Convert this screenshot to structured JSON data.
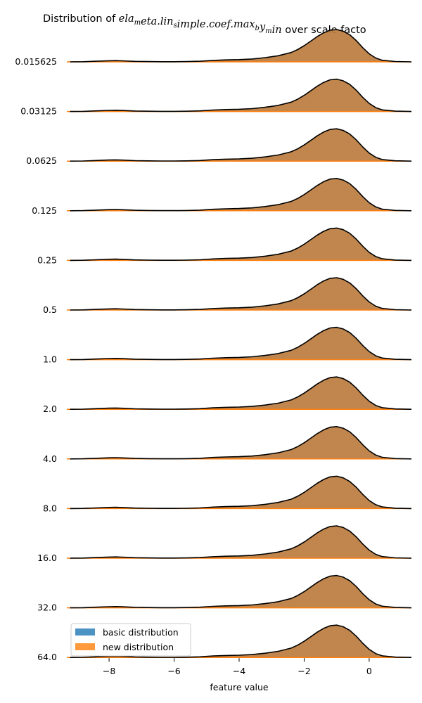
{
  "chart_data": {
    "type": "area",
    "chart_kind": "ridgeline",
    "title": "Distribution of $ela_meta.lin_simple.coef.max_by_min$ over scale factors",
    "title_display": {
      "prefix": "Distribution of ",
      "math": [
        {
          "base": "ela",
          "sub": "m"
        },
        {
          "base": "eta.lin",
          "sub": "s"
        },
        {
          "base": "imple.coef.max",
          "sub": "b"
        },
        {
          "base": "y",
          "sub": "m"
        },
        {
          "base": "in",
          "sub": ""
        }
      ],
      "suffix": " over scale facto"
    },
    "xlabel": "feature value",
    "ylabel": "",
    "xlim": [
      -9.3,
      1.3
    ],
    "x_ticks": [
      {
        "value": -8,
        "label": "−8"
      },
      {
        "value": -6,
        "label": "−6"
      },
      {
        "value": -4,
        "label": "−4"
      },
      {
        "value": -2,
        "label": "−2"
      },
      {
        "value": 0,
        "label": "0"
      }
    ],
    "row_labels": [
      "0.015625",
      "0.03125",
      "0.0625",
      "0.125",
      "0.25",
      "0.5",
      "1.0",
      "2.0",
      "4.0",
      "8.0",
      "16.0",
      "32.0",
      "64.0"
    ],
    "grid": false,
    "legend_position": "lower-left",
    "colors": {
      "basic": "#1f77b4",
      "new": "#ff7f0e",
      "overlap": "#c98b55",
      "outline": "#000000"
    },
    "x": [
      -9.2,
      -8.8,
      -8.4,
      -8.0,
      -7.8,
      -7.6,
      -7.2,
      -6.8,
      -6.4,
      -6.0,
      -5.6,
      -5.2,
      -4.8,
      -4.4,
      -4.0,
      -3.6,
      -3.2,
      -2.8,
      -2.4,
      -2.2,
      -2.0,
      -1.8,
      -1.6,
      -1.4,
      -1.2,
      -1.0,
      -0.8,
      -0.6,
      -0.4,
      -0.2,
      0.0,
      0.2,
      0.4,
      0.8,
      1.3
    ],
    "series": [
      {
        "name": "basic distribution",
        "values": [
          0.0,
          0.005,
          0.02,
          0.035,
          0.04,
          0.032,
          0.015,
          0.008,
          0.004,
          0.004,
          0.008,
          0.02,
          0.045,
          0.06,
          0.07,
          0.09,
          0.13,
          0.19,
          0.29,
          0.38,
          0.5,
          0.64,
          0.78,
          0.9,
          0.98,
          1.0,
          0.95,
          0.84,
          0.66,
          0.44,
          0.25,
          0.12,
          0.05,
          0.01,
          0.0
        ]
      },
      {
        "name": "new distribution",
        "values": [
          0.0,
          0.005,
          0.02,
          0.035,
          0.04,
          0.032,
          0.015,
          0.008,
          0.004,
          0.004,
          0.008,
          0.02,
          0.045,
          0.06,
          0.07,
          0.09,
          0.13,
          0.19,
          0.29,
          0.38,
          0.5,
          0.64,
          0.78,
          0.9,
          0.98,
          1.0,
          0.95,
          0.84,
          0.66,
          0.44,
          0.25,
          0.12,
          0.05,
          0.01,
          0.0
        ]
      }
    ]
  }
}
